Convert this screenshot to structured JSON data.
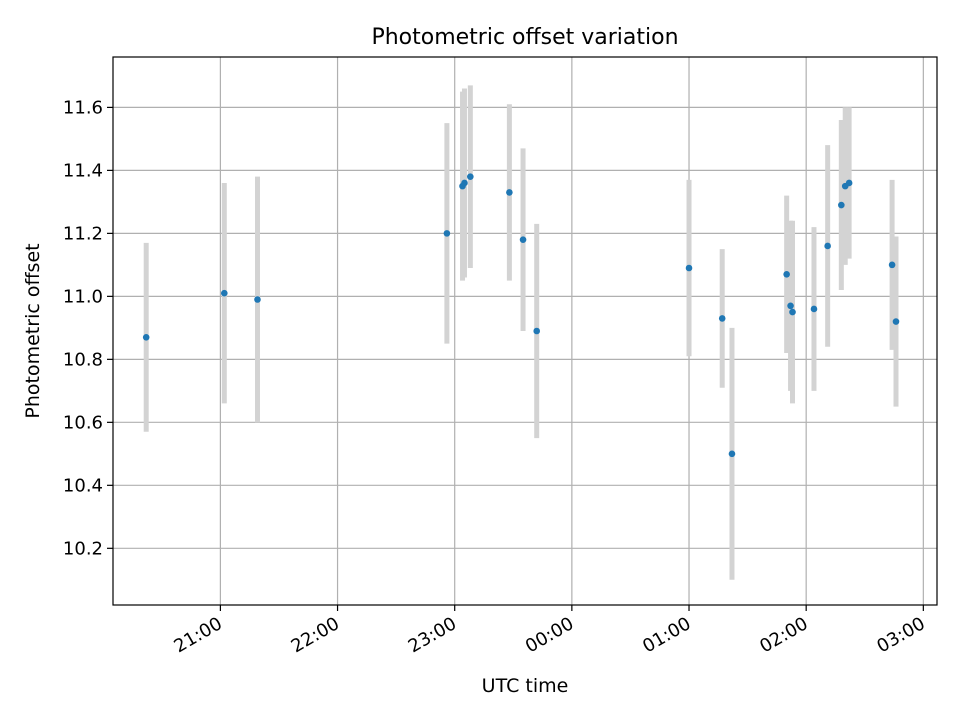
{
  "chart_data": {
    "type": "scatter",
    "title": "Photometric offset variation",
    "xlabel": "UTC time",
    "ylabel": "Photometric offset",
    "x_axis_kind": "time",
    "xlim": [
      "20:05",
      "03:07"
    ],
    "ylim": [
      10.02,
      11.76
    ],
    "grid": true,
    "x_ticks": [
      "21:00",
      "22:00",
      "23:00",
      "00:00",
      "01:00",
      "02:00",
      "03:00"
    ],
    "y_ticks": [
      "10.2",
      "10.4",
      "10.6",
      "10.8",
      "11.0",
      "11.2",
      "11.4",
      "11.6"
    ],
    "colors": {
      "marker": "#1f77b4",
      "errorbar": "#d3d3d3",
      "grid": "#b0b0b0"
    },
    "series": [
      {
        "points": [
          {
            "x": "20:22",
            "y": 10.87,
            "err": 0.3
          },
          {
            "x": "21:02",
            "y": 11.01,
            "err": 0.35
          },
          {
            "x": "21:19",
            "y": 10.99,
            "err": 0.39
          },
          {
            "x": "22:56",
            "y": 11.2,
            "err": 0.35
          },
          {
            "x": "23:04",
            "y": 11.35,
            "err": 0.3
          },
          {
            "x": "23:05",
            "y": 11.36,
            "err": 0.3
          },
          {
            "x": "23:08",
            "y": 11.38,
            "err": 0.29
          },
          {
            "x": "23:28",
            "y": 11.33,
            "err": 0.28
          },
          {
            "x": "23:35",
            "y": 11.18,
            "err": 0.29
          },
          {
            "x": "23:42",
            "y": 10.89,
            "err": 0.34
          },
          {
            "x": "01:00",
            "y": 11.09,
            "err": 0.28
          },
          {
            "x": "01:17",
            "y": 10.93,
            "err": 0.22
          },
          {
            "x": "01:22",
            "y": 10.5,
            "err": 0.4
          },
          {
            "x": "01:50",
            "y": 11.07,
            "err": 0.25
          },
          {
            "x": "01:52",
            "y": 10.97,
            "err": 0.27
          },
          {
            "x": "01:53",
            "y": 10.95,
            "err": 0.29
          },
          {
            "x": "02:04",
            "y": 10.96,
            "err": 0.26
          },
          {
            "x": "02:11",
            "y": 11.16,
            "err": 0.32
          },
          {
            "x": "02:18",
            "y": 11.29,
            "err": 0.27
          },
          {
            "x": "02:20",
            "y": 11.35,
            "err": 0.25
          },
          {
            "x": "02:22",
            "y": 11.36,
            "err": 0.24
          },
          {
            "x": "02:44",
            "y": 11.1,
            "err": 0.27
          },
          {
            "x": "02:46",
            "y": 10.92,
            "err": 0.27
          }
        ]
      }
    ]
  }
}
